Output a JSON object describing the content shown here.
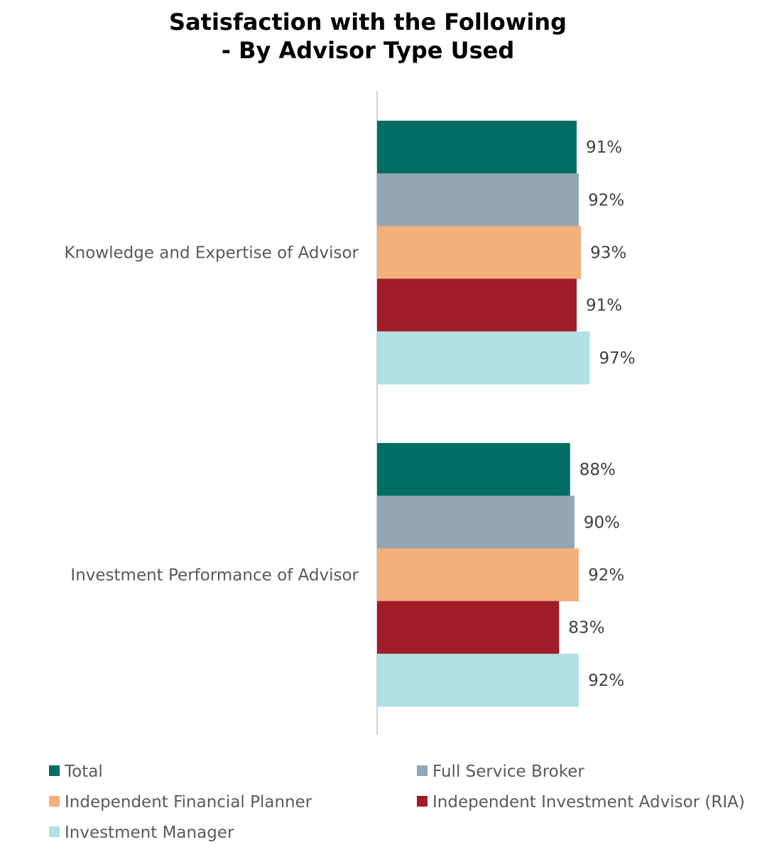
{
  "chart_data": {
    "type": "bar",
    "orientation": "horizontal",
    "title": "Satisfaction with the Following",
    "subtitle": "- By Advisor Type Used",
    "categories": [
      "Knowledge and Expertise of Advisor",
      "Investment Performance of Advisor"
    ],
    "value_suffix": "%",
    "xlim": [
      0,
      100
    ],
    "grid": false,
    "legend_position": "bottom",
    "series": [
      {
        "name": "Total",
        "color": "#006e64",
        "values": [
          91,
          88
        ]
      },
      {
        "name": "Full Service Broker",
        "color": "#94a6b3",
        "values": [
          92,
          90
        ]
      },
      {
        "name": "Independent Financial Planner",
        "color": "#f2b07d",
        "values": [
          93,
          92
        ]
      },
      {
        "name": "Independent Investment Advisor (RIA)",
        "color": "#a11d29",
        "values": [
          91,
          83
        ]
      },
      {
        "name": "Investment Manager",
        "color": "#b0e0e3",
        "values": [
          97,
          92
        ]
      }
    ]
  }
}
